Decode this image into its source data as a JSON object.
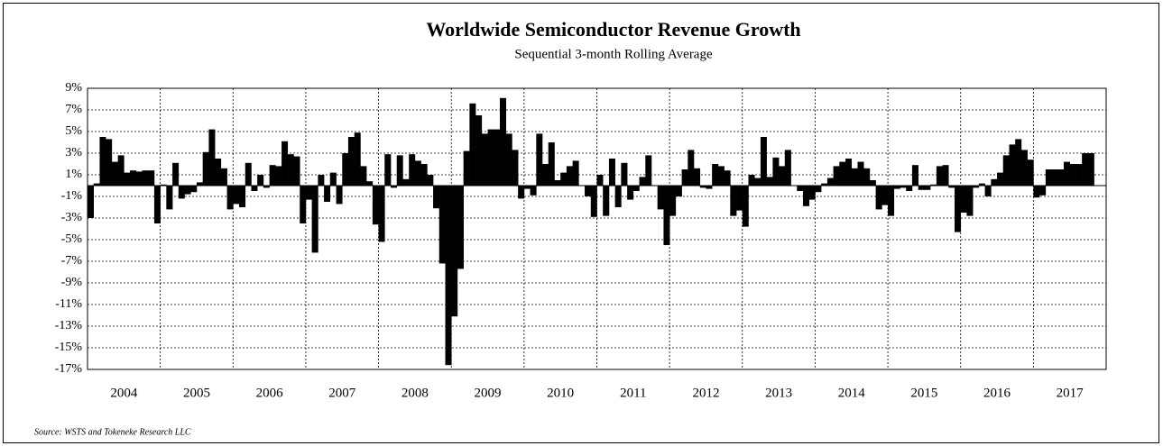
{
  "chart_data": {
    "type": "bar",
    "title": "Worldwide Semiconductor Revenue Growth",
    "subtitle": "Sequential 3-month Rolling Average",
    "source": "Source: WSTS and Tokeneke Research LLC",
    "color": "#000000",
    "grid": true,
    "xlim": [
      2004,
      2018
    ],
    "xticks": [
      2004,
      2005,
      2006,
      2007,
      2008,
      2009,
      2010,
      2011,
      2012,
      2013,
      2014,
      2015,
      2016,
      2017
    ],
    "ylim": [
      -17,
      9
    ],
    "yticks": [
      {
        "value": 9,
        "label": "9%"
      },
      {
        "value": 7,
        "label": "7%"
      },
      {
        "value": 5,
        "label": "5%"
      },
      {
        "value": 3,
        "label": "3%"
      },
      {
        "value": 1,
        "label": "1%"
      },
      {
        "value": -1,
        "label": "-1%"
      },
      {
        "value": -3,
        "label": "-3%"
      },
      {
        "value": -5,
        "label": "-5%"
      },
      {
        "value": -7,
        "label": "-7%"
      },
      {
        "value": -9,
        "label": "-9%"
      },
      {
        "value": -11,
        "label": "-11%"
      },
      {
        "value": -13,
        "label": "-13%"
      },
      {
        "value": -15,
        "label": "-15%"
      },
      {
        "value": -17,
        "label": "-17%"
      }
    ],
    "x": [
      2004,
      2004.083,
      2004.167,
      2004.25,
      2004.333,
      2004.417,
      2004.5,
      2004.583,
      2004.667,
      2004.75,
      2004.833,
      2004.917,
      2005,
      2005.083,
      2005.167,
      2005.25,
      2005.333,
      2005.417,
      2005.5,
      2005.583,
      2005.667,
      2005.75,
      2005.833,
      2005.917,
      2006,
      2006.083,
      2006.167,
      2006.25,
      2006.333,
      2006.417,
      2006.5,
      2006.583,
      2006.667,
      2006.75,
      2006.833,
      2006.917,
      2007,
      2007.083,
      2007.167,
      2007.25,
      2007.333,
      2007.417,
      2007.5,
      2007.583,
      2007.667,
      2007.75,
      2007.833,
      2007.917,
      2008,
      2008.083,
      2008.167,
      2008.25,
      2008.333,
      2008.417,
      2008.5,
      2008.583,
      2008.667,
      2008.75,
      2008.833,
      2008.917,
      2009,
      2009.083,
      2009.167,
      2009.25,
      2009.333,
      2009.417,
      2009.5,
      2009.583,
      2009.667,
      2009.75,
      2009.833,
      2009.917,
      2010,
      2010.083,
      2010.167,
      2010.25,
      2010.333,
      2010.417,
      2010.5,
      2010.583,
      2010.667,
      2010.75,
      2010.833,
      2010.917,
      2011,
      2011.083,
      2011.167,
      2011.25,
      2011.333,
      2011.417,
      2011.5,
      2011.583,
      2011.667,
      2011.75,
      2011.833,
      2011.917,
      2012,
      2012.083,
      2012.167,
      2012.25,
      2012.333,
      2012.417,
      2012.5,
      2012.583,
      2012.667,
      2012.75,
      2012.833,
      2012.917,
      2013,
      2013.083,
      2013.167,
      2013.25,
      2013.333,
      2013.417,
      2013.5,
      2013.583,
      2013.667,
      2013.75,
      2013.833,
      2013.917,
      2014,
      2014.083,
      2014.167,
      2014.25,
      2014.333,
      2014.417,
      2014.5,
      2014.583,
      2014.667,
      2014.75,
      2014.833,
      2014.917,
      2015,
      2015.083,
      2015.167,
      2015.25,
      2015.333,
      2015.417,
      2015.5,
      2015.583,
      2015.667,
      2015.75,
      2015.833,
      2015.917,
      2016,
      2016.083,
      2016.167,
      2016.25,
      2016.333,
      2016.417,
      2016.5,
      2016.583,
      2016.667,
      2016.75,
      2016.833,
      2016.917,
      2017,
      2017.083,
      2017.167,
      2017.25,
      2017.333,
      2017.417,
      2017.5,
      2017.583,
      2017.667,
      2017.75
    ],
    "values": [
      -3.0,
      0.2,
      4.5,
      4.3,
      2.2,
      2.8,
      1.2,
      1.4,
      1.3,
      1.4,
      1.4,
      -3.5,
      0.1,
      -2.2,
      2.1,
      -1.2,
      -0.8,
      -0.6,
      0.3,
      3.1,
      5.2,
      2.5,
      1.6,
      -2.2,
      -1.7,
      -2.0,
      2.1,
      -0.5,
      1.0,
      -0.2,
      1.9,
      1.8,
      4.1,
      2.9,
      2.7,
      -3.5,
      -1.3,
      -6.2,
      1.0,
      -1.5,
      1.2,
      -1.7,
      3.0,
      4.5,
      4.9,
      1.8,
      0.4,
      -3.6,
      -5.2,
      2.9,
      -0.2,
      2.8,
      0.6,
      2.9,
      2.3,
      2.0,
      1.0,
      -2.1,
      -7.2,
      -16.6,
      -12.1,
      -7.7,
      3.2,
      7.6,
      6.5,
      4.8,
      5.2,
      5.2,
      8.1,
      4.8,
      3.3,
      -1.2,
      -0.3,
      -0.9,
      4.8,
      2.0,
      4.0,
      0.5,
      1.2,
      1.8,
      2.3,
      0.0,
      -1.0,
      -2.9,
      1.0,
      -2.8,
      2.5,
      -2.0,
      2.1,
      -1.3,
      -0.5,
      0.8,
      2.8,
      0.0,
      -2.2,
      -5.5,
      -2.8,
      -1.0,
      1.5,
      3.3,
      1.6,
      -0.2,
      -0.3,
      2.0,
      1.8,
      1.4,
      -2.8,
      -2.3,
      -3.8,
      1.0,
      0.7,
      4.5,
      0.8,
      2.6,
      1.8,
      3.3,
      0.0,
      -0.5,
      -1.9,
      -1.3,
      -0.6,
      0.2,
      0.7,
      1.8,
      2.2,
      2.5,
      1.6,
      2.2,
      1.6,
      0.5,
      -2.2,
      -1.8,
      -2.8,
      -0.3,
      -0.2,
      -0.5,
      1.9,
      -0.4,
      -0.4,
      0.1,
      1.8,
      1.9,
      -0.2,
      -4.3,
      -2.5,
      -2.8,
      -0.2,
      0.2,
      -1.0,
      0.6,
      1.2,
      2.8,
      3.8,
      4.3,
      3.3,
      2.4,
      -1.1,
      -0.9,
      1.5,
      1.5,
      1.5,
      2.2,
      2.0,
      2.0,
      3.0,
      3.0
    ]
  }
}
